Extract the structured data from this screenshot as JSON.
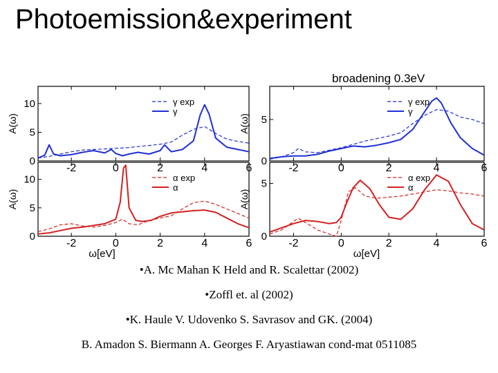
{
  "slide": {
    "title": "Photoemission&experiment"
  },
  "figure": {
    "header": "broadening 0.3eV"
  },
  "chart_data": [
    {
      "type": "line",
      "ylabel": "A(ω)",
      "x_ticks": [
        -2,
        0,
        2,
        4,
        6
      ],
      "y_ticks": [
        0,
        5,
        10
      ],
      "xlim": [
        -3.5,
        6
      ],
      "ylim": [
        0,
        13
      ],
      "legend_position": "top-right",
      "series": [
        {
          "name": "γ exp",
          "style": "dashed",
          "color": "#1f2ed6",
          "x": [
            -3.5,
            -3,
            -2.5,
            -2,
            -1.5,
            -1,
            -0.5,
            0,
            0.5,
            1,
            1.5,
            2,
            2.5,
            3,
            3.5,
            4,
            4.5,
            5,
            5.5,
            6
          ],
          "y": [
            0.5,
            0.8,
            1.2,
            1.6,
            1.9,
            2.0,
            2.1,
            2.2,
            2.3,
            2.5,
            2.7,
            2.9,
            3.3,
            4.5,
            5.5,
            6.0,
            4.8,
            3.8,
            3.4,
            3.1
          ]
        },
        {
          "name": "γ",
          "style": "solid",
          "color": "#1f2ed6",
          "x": [
            -3.5,
            -3.2,
            -3.0,
            -2.8,
            -2.5,
            -2,
            -1.5,
            -1,
            -0.5,
            -0.2,
            0,
            0.3,
            0.6,
            1,
            1.5,
            2,
            2.2,
            2.5,
            3,
            3.5,
            3.8,
            4,
            4.2,
            4.5,
            5,
            5.5,
            6
          ],
          "y": [
            0.5,
            1.0,
            2.8,
            1.2,
            0.9,
            1.1,
            1.5,
            1.8,
            1.4,
            2.0,
            1.3,
            0.9,
            1.2,
            1.5,
            1.2,
            1.8,
            2.8,
            1.6,
            2.0,
            3.5,
            8.0,
            9.8,
            8.2,
            4.0,
            2.4,
            2.0,
            1.6
          ]
        }
      ]
    },
    {
      "type": "line",
      "ylabel": "A(ω)",
      "x_ticks": [
        -2,
        0,
        2,
        4,
        6
      ],
      "y_ticks": [
        0,
        5
      ],
      "xlim": [
        -3,
        6
      ],
      "ylim": [
        0,
        9
      ],
      "legend_position": "top-right",
      "series": [
        {
          "name": "γ exp",
          "style": "dashed",
          "color": "#1f2ed6",
          "x": [
            -3,
            -2.5,
            -2,
            -1.8,
            -1.5,
            -1,
            -0.5,
            0,
            0.5,
            1,
            1.5,
            2,
            2.5,
            3,
            3.5,
            4,
            4.5,
            5,
            5.5,
            6
          ],
          "y": [
            0.2,
            0.5,
            1.0,
            1.5,
            1.1,
            1.0,
            1.3,
            1.6,
            2.0,
            2.4,
            2.7,
            3.0,
            3.4,
            4.5,
            5.5,
            6.2,
            6.0,
            5.3,
            5.0,
            4.5
          ]
        },
        {
          "name": "γ",
          "style": "solid",
          "color": "#1f2ed6",
          "x": [
            -3,
            -2.5,
            -2,
            -1.5,
            -1,
            -0.5,
            0,
            0.5,
            1,
            1.5,
            2,
            2.5,
            3,
            3.4,
            3.8,
            4,
            4.2,
            4.6,
            5,
            5.5,
            6
          ],
          "y": [
            0.3,
            0.5,
            0.6,
            0.6,
            0.8,
            1.2,
            1.5,
            1.8,
            1.7,
            1.9,
            2.2,
            2.6,
            3.8,
            5.5,
            7.2,
            7.6,
            7.0,
            4.6,
            2.8,
            1.5,
            0.7
          ]
        }
      ]
    },
    {
      "type": "line",
      "ylabel": "A(ω)",
      "xlabel": "ω[eV]",
      "x_ticks": [
        -2,
        0,
        2,
        4,
        6
      ],
      "y_ticks": [
        0,
        5,
        10
      ],
      "xlim": [
        -3.5,
        6
      ],
      "ylim": [
        0,
        13
      ],
      "legend_position": "top-right",
      "series": [
        {
          "name": "α exp",
          "style": "dashed",
          "color": "#d42020",
          "x": [
            -3.5,
            -3,
            -2.5,
            -2,
            -1.5,
            -1,
            -0.5,
            0,
            0.3,
            0.6,
            1,
            1.5,
            2,
            2.5,
            3,
            3.5,
            4,
            4.5,
            5,
            5.5,
            6
          ],
          "y": [
            0.8,
            1.3,
            2.0,
            2.2,
            1.8,
            1.6,
            1.9,
            2.4,
            3.0,
            2.2,
            2.0,
            2.8,
            3.2,
            3.6,
            4.8,
            5.9,
            6.2,
            5.6,
            4.8,
            4.0,
            3.2
          ]
        },
        {
          "name": "α",
          "style": "solid",
          "color": "#d42020",
          "x": [
            -3.5,
            -3,
            -2.5,
            -2,
            -1.5,
            -1,
            -0.5,
            0,
            0.2,
            0.35,
            0.45,
            0.6,
            0.9,
            1.2,
            1.6,
            2,
            2.5,
            3,
            3.5,
            4,
            4.5,
            5,
            5.5,
            6
          ],
          "y": [
            0.4,
            0.6,
            1.0,
            1.4,
            1.6,
            1.9,
            2.2,
            3.0,
            6.0,
            12.0,
            12.5,
            5.0,
            2.8,
            2.6,
            2.8,
            3.5,
            4.1,
            4.3,
            4.5,
            4.6,
            4.2,
            3.2,
            2.2,
            1.5
          ]
        }
      ]
    },
    {
      "type": "line",
      "ylabel": "A(ω)",
      "xlabel": "ω[eV]",
      "x_ticks": [
        -2,
        0,
        2,
        4,
        6
      ],
      "y_ticks": [
        0,
        5
      ],
      "xlim": [
        -3,
        6
      ],
      "ylim": [
        0,
        7
      ],
      "legend_position": "top-right",
      "series": [
        {
          "name": "α exp",
          "style": "dashed",
          "color": "#d42020",
          "x": [
            -3,
            -2.5,
            -2,
            -1.8,
            -1.5,
            -1,
            -0.5,
            -0.2,
            0,
            0.3,
            0.6,
            1,
            1.5,
            2,
            2.5,
            3,
            3.5,
            4,
            4.5,
            5,
            5.5,
            6
          ],
          "y": [
            0.2,
            0.6,
            1.4,
            1.7,
            1.3,
            0.6,
            0.2,
            0.0,
            1.5,
            4.2,
            4.6,
            3.8,
            3.6,
            3.7,
            3.8,
            4.0,
            4.2,
            4.4,
            4.3,
            4.1,
            4.0,
            3.8
          ]
        },
        {
          "name": "α",
          "style": "solid",
          "color": "#d42020",
          "x": [
            -3,
            -2.5,
            -2,
            -1.5,
            -1,
            -0.5,
            -0.2,
            0,
            0.2,
            0.5,
            0.8,
            1.2,
            1.6,
            2,
            2.5,
            3,
            3.5,
            4,
            4.5,
            5,
            5.5,
            6
          ],
          "y": [
            0.4,
            0.8,
            1.2,
            1.5,
            1.4,
            1.2,
            1.3,
            1.8,
            3.0,
            4.6,
            5.3,
            4.5,
            3.0,
            1.8,
            1.6,
            2.6,
            4.4,
            5.8,
            5.2,
            3.0,
            1.2,
            0.6
          ]
        }
      ]
    }
  ],
  "references": [
    "•A. Mc Mahan K Held and R. Scalettar (2002)",
    "•Zoffl et. al (2002)",
    "•K. Haule V. Udovenko  S. Savrasov and GK. (2004)",
    "B. Amadon S. Biermann A. Georges F. Aryastiawan cond-mat 0511085"
  ]
}
